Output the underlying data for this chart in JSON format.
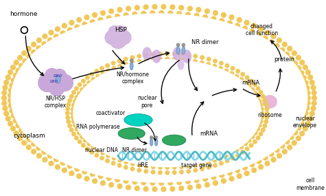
{
  "bg_color": "#ffffff",
  "membrane_color": "#f0c85a",
  "membrane_dark": "#e0a820",
  "hsp_color": "#d4b8e0",
  "nr_hsp_color": "#c8a8d8",
  "nr_color": "#8ab0dc",
  "nr_ball_color": "#888888",
  "coactivator_color": "#00d4c0",
  "rna_pol_color": "#30a860",
  "mrna_nuc_color": "#30a860",
  "nuclear_pore_color": "#d0b0e0",
  "ribosome_color": "#e8b8d8",
  "dna_color1": "#80d8e8",
  "dna_color2": "#50b8c8",
  "labels": {
    "hormone": "hormone",
    "hsp": "HSP",
    "nr_hsp": "NR/HSP\ncomplex",
    "nr_hormone": "NR/hormone\ncomplex",
    "nr_dimer_top": "NR dimer",
    "nuclear_pore": "nuclear\npore",
    "coactivator": "coactivator",
    "rna_pol": "RNA polymerase",
    "nuclear_dna": "nuclear DNA",
    "hre": "HRE",
    "target_gene": "target gene",
    "nr_dimer_nuc": "NR dimer",
    "mrna_nucleus": "mRNA",
    "mrna_cytoplasm": "mRNA",
    "protein": "protein",
    "ribosome": "ribosome",
    "changed": "changed\ncell function",
    "cytoplasm": "cytoplasm",
    "nuclear_envelope": "nuclear\nenvelope",
    "cell_membrane": "cell\nmembrane"
  },
  "figsize": [
    4.75,
    2.85
  ],
  "dpi": 100
}
